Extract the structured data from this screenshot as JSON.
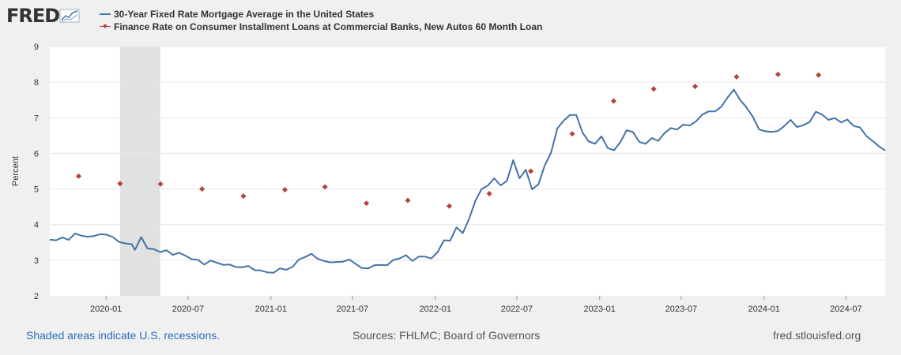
{
  "header": {
    "logo_text": "FRED"
  },
  "legend": [
    {
      "label": "30-Year Fixed Rate Mortgage Average in the United States",
      "color": "#4572a7"
    },
    {
      "label": "Finance Rate on Consumer Installment Loans at Commercial Banks, New Autos 60 Month Loan",
      "color": "#b5453a"
    }
  ],
  "footer": {
    "left": "Shaded areas indicate U.S. recessions.",
    "center": "Sources: FHLMC; Board of Governors",
    "right": "fred.stlouisfed.org"
  },
  "chart_data": {
    "type": "line",
    "ylabel": "Percent",
    "ylim": [
      2,
      9
    ],
    "yticks": [
      2,
      3,
      4,
      5,
      6,
      7,
      8,
      9
    ],
    "xlim": [
      "2019-08-29",
      "2024-09-26"
    ],
    "xticks": [
      "2020-01",
      "2020-07",
      "2021-01",
      "2021-07",
      "2022-01",
      "2022-07",
      "2023-01",
      "2023-07",
      "2024-01",
      "2024-07"
    ],
    "grid": true,
    "recession": {
      "start": "2020-02-01",
      "end": "2020-04-30"
    },
    "series": [
      {
        "name": "30-Year Fixed Rate Mortgage Average in the United States",
        "color": "#4572a7",
        "points": [
          [
            "2019-08-29",
            3.58
          ],
          [
            "2019-09-12",
            3.56
          ],
          [
            "2019-09-26",
            3.64
          ],
          [
            "2019-10-10",
            3.57
          ],
          [
            "2019-10-24",
            3.75
          ],
          [
            "2019-11-07",
            3.69
          ],
          [
            "2019-11-21",
            3.66
          ],
          [
            "2019-12-05",
            3.68
          ],
          [
            "2019-12-19",
            3.73
          ],
          [
            "2020-01-02",
            3.72
          ],
          [
            "2020-01-16",
            3.65
          ],
          [
            "2020-01-30",
            3.51
          ],
          [
            "2020-02-13",
            3.47
          ],
          [
            "2020-02-27",
            3.45
          ],
          [
            "2020-03-05",
            3.29
          ],
          [
            "2020-03-19",
            3.65
          ],
          [
            "2020-04-02",
            3.33
          ],
          [
            "2020-04-16",
            3.31
          ],
          [
            "2020-04-30",
            3.23
          ],
          [
            "2020-05-14",
            3.28
          ],
          [
            "2020-05-28",
            3.15
          ],
          [
            "2020-06-11",
            3.21
          ],
          [
            "2020-06-25",
            3.13
          ],
          [
            "2020-07-09",
            3.03
          ],
          [
            "2020-07-23",
            3.01
          ],
          [
            "2020-08-06",
            2.88
          ],
          [
            "2020-08-20",
            2.99
          ],
          [
            "2020-09-03",
            2.93
          ],
          [
            "2020-09-17",
            2.87
          ],
          [
            "2020-10-01",
            2.88
          ],
          [
            "2020-10-15",
            2.81
          ],
          [
            "2020-10-29",
            2.8
          ],
          [
            "2020-11-12",
            2.84
          ],
          [
            "2020-11-26",
            2.72
          ],
          [
            "2020-12-10",
            2.71
          ],
          [
            "2020-12-24",
            2.66
          ],
          [
            "2021-01-07",
            2.65
          ],
          [
            "2021-01-21",
            2.77
          ],
          [
            "2021-02-04",
            2.73
          ],
          [
            "2021-02-18",
            2.81
          ],
          [
            "2021-03-04",
            3.02
          ],
          [
            "2021-03-18",
            3.09
          ],
          [
            "2021-04-01",
            3.18
          ],
          [
            "2021-04-15",
            3.04
          ],
          [
            "2021-04-29",
            2.98
          ],
          [
            "2021-05-13",
            2.94
          ],
          [
            "2021-05-27",
            2.95
          ],
          [
            "2021-06-10",
            2.96
          ],
          [
            "2021-06-24",
            3.02
          ],
          [
            "2021-07-08",
            2.9
          ],
          [
            "2021-07-22",
            2.78
          ],
          [
            "2021-08-05",
            2.77
          ],
          [
            "2021-08-19",
            2.86
          ],
          [
            "2021-09-02",
            2.87
          ],
          [
            "2021-09-16",
            2.86
          ],
          [
            "2021-09-30",
            3.01
          ],
          [
            "2021-10-14",
            3.05
          ],
          [
            "2021-10-28",
            3.14
          ],
          [
            "2021-11-11",
            2.98
          ],
          [
            "2021-11-25",
            3.1
          ],
          [
            "2021-12-09",
            3.1
          ],
          [
            "2021-12-23",
            3.05
          ],
          [
            "2022-01-06",
            3.22
          ],
          [
            "2022-01-20",
            3.56
          ],
          [
            "2022-02-03",
            3.55
          ],
          [
            "2022-02-17",
            3.92
          ],
          [
            "2022-03-03",
            3.76
          ],
          [
            "2022-03-17",
            4.16
          ],
          [
            "2022-03-31",
            4.67
          ],
          [
            "2022-04-14",
            5.0
          ],
          [
            "2022-04-28",
            5.1
          ],
          [
            "2022-05-12",
            5.3
          ],
          [
            "2022-05-26",
            5.1
          ],
          [
            "2022-06-09",
            5.23
          ],
          [
            "2022-06-23",
            5.81
          ],
          [
            "2022-07-07",
            5.3
          ],
          [
            "2022-07-21",
            5.54
          ],
          [
            "2022-08-04",
            4.99
          ],
          [
            "2022-08-18",
            5.13
          ],
          [
            "2022-09-01",
            5.66
          ],
          [
            "2022-09-15",
            6.02
          ],
          [
            "2022-09-29",
            6.7
          ],
          [
            "2022-10-13",
            6.92
          ],
          [
            "2022-10-27",
            7.08
          ],
          [
            "2022-11-10",
            7.08
          ],
          [
            "2022-11-24",
            6.58
          ],
          [
            "2022-12-08",
            6.33
          ],
          [
            "2022-12-22",
            6.27
          ],
          [
            "2023-01-05",
            6.48
          ],
          [
            "2023-01-19",
            6.15
          ],
          [
            "2023-02-02",
            6.09
          ],
          [
            "2023-02-16",
            6.32
          ],
          [
            "2023-03-02",
            6.65
          ],
          [
            "2023-03-16",
            6.6
          ],
          [
            "2023-03-30",
            6.32
          ],
          [
            "2023-04-13",
            6.27
          ],
          [
            "2023-04-27",
            6.43
          ],
          [
            "2023-05-11",
            6.35
          ],
          [
            "2023-05-25",
            6.57
          ],
          [
            "2023-06-08",
            6.71
          ],
          [
            "2023-06-22",
            6.67
          ],
          [
            "2023-07-06",
            6.81
          ],
          [
            "2023-07-20",
            6.78
          ],
          [
            "2023-08-03",
            6.9
          ],
          [
            "2023-08-17",
            7.09
          ],
          [
            "2023-08-31",
            7.18
          ],
          [
            "2023-09-14",
            7.18
          ],
          [
            "2023-09-28",
            7.31
          ],
          [
            "2023-10-12",
            7.57
          ],
          [
            "2023-10-26",
            7.79
          ],
          [
            "2023-11-09",
            7.5
          ],
          [
            "2023-11-23",
            7.29
          ],
          [
            "2023-12-07",
            7.03
          ],
          [
            "2023-12-21",
            6.67
          ],
          [
            "2024-01-04",
            6.62
          ],
          [
            "2024-01-18",
            6.6
          ],
          [
            "2024-02-01",
            6.63
          ],
          [
            "2024-02-15",
            6.77
          ],
          [
            "2024-02-29",
            6.94
          ],
          [
            "2024-03-14",
            6.74
          ],
          [
            "2024-03-28",
            6.79
          ],
          [
            "2024-04-11",
            6.88
          ],
          [
            "2024-04-25",
            7.17
          ],
          [
            "2024-05-09",
            7.09
          ],
          [
            "2024-05-23",
            6.94
          ],
          [
            "2024-06-06",
            6.99
          ],
          [
            "2024-06-20",
            6.87
          ],
          [
            "2024-07-04",
            6.95
          ],
          [
            "2024-07-18",
            6.77
          ],
          [
            "2024-08-01",
            6.73
          ],
          [
            "2024-08-15",
            6.49
          ],
          [
            "2024-08-29",
            6.35
          ],
          [
            "2024-09-12",
            6.2
          ],
          [
            "2024-09-26",
            6.08
          ]
        ]
      },
      {
        "name": "Finance Rate on Consumer Installment Loans at Commercial Banks, New Autos 60 Month Loan",
        "color": "#b5453a",
        "marker": "diamond",
        "points": [
          [
            "2019-11-01",
            5.36
          ],
          [
            "2020-02-01",
            5.15
          ],
          [
            "2020-05-01",
            5.14
          ],
          [
            "2020-08-01",
            5.0
          ],
          [
            "2020-11-01",
            4.8
          ],
          [
            "2021-02-01",
            4.98
          ],
          [
            "2021-05-01",
            5.06
          ],
          [
            "2021-08-01",
            4.6
          ],
          [
            "2021-11-01",
            4.68
          ],
          [
            "2022-02-01",
            4.52
          ],
          [
            "2022-05-01",
            4.87
          ],
          [
            "2022-08-01",
            5.5
          ],
          [
            "2022-11-01",
            6.55
          ],
          [
            "2023-02-01",
            7.47
          ],
          [
            "2023-05-01",
            7.81
          ],
          [
            "2023-08-01",
            7.88
          ],
          [
            "2023-11-01",
            8.15
          ],
          [
            "2024-02-01",
            8.22
          ],
          [
            "2024-05-01",
            8.2
          ]
        ]
      }
    ]
  }
}
